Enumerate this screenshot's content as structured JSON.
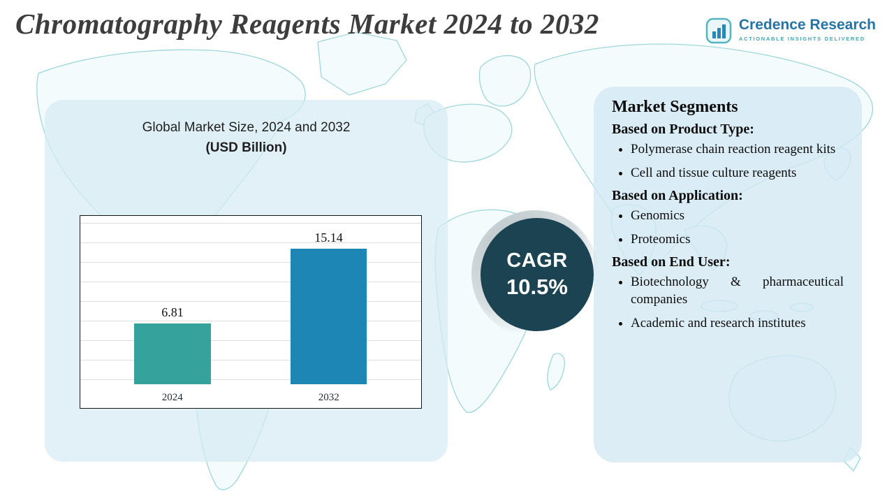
{
  "header": {
    "title": "Chromatography Reagents Market 2024 to 2032",
    "logo": {
      "name": "Credence Research",
      "tagline": "ACTIONABLE INSIGHTS DELIVERED"
    }
  },
  "market_size_panel": {
    "subtitle_line1": "Global Market Size, 2024 and 2032",
    "subtitle_line2": "(USD Billion)"
  },
  "chart_data": {
    "type": "bar",
    "title": "Global Market Size, 2024 and 2032 (USD Billion)",
    "categories": [
      "2024",
      "2032"
    ],
    "values": [
      6.81,
      15.14
    ],
    "value_labels": [
      "6.81",
      "15.14"
    ],
    "xlabel": "",
    "ylabel": "",
    "ylim": [
      0,
      18
    ],
    "grid": "horizontal",
    "legend": "none",
    "bar_colors": [
      "#35a39c",
      "#1d86b5"
    ]
  },
  "cagr_badge": {
    "label": "CAGR",
    "value": "10.5%",
    "circle_color": "#1c4351"
  },
  "segments_panel": {
    "title": "Market Segments",
    "groups": [
      {
        "heading": "Based on Product Type:",
        "items": [
          "Polymerase chain reaction reagent kits",
          "Cell and tissue culture reagents"
        ]
      },
      {
        "heading": "Based on Application:",
        "items": [
          "Genomics",
          "Proteomics"
        ]
      },
      {
        "heading": "Based on End User:",
        "items": [
          "Biotechnology & pharmaceutical companies",
          "Academic and research institutes"
        ]
      }
    ]
  },
  "colors": {
    "panel_blue": "#d6ebf4",
    "map_line": "#9dd7da",
    "title_text": "#3d3d3d",
    "logo_blue": "#2474a8",
    "logo_teal": "#3fa9b3"
  }
}
